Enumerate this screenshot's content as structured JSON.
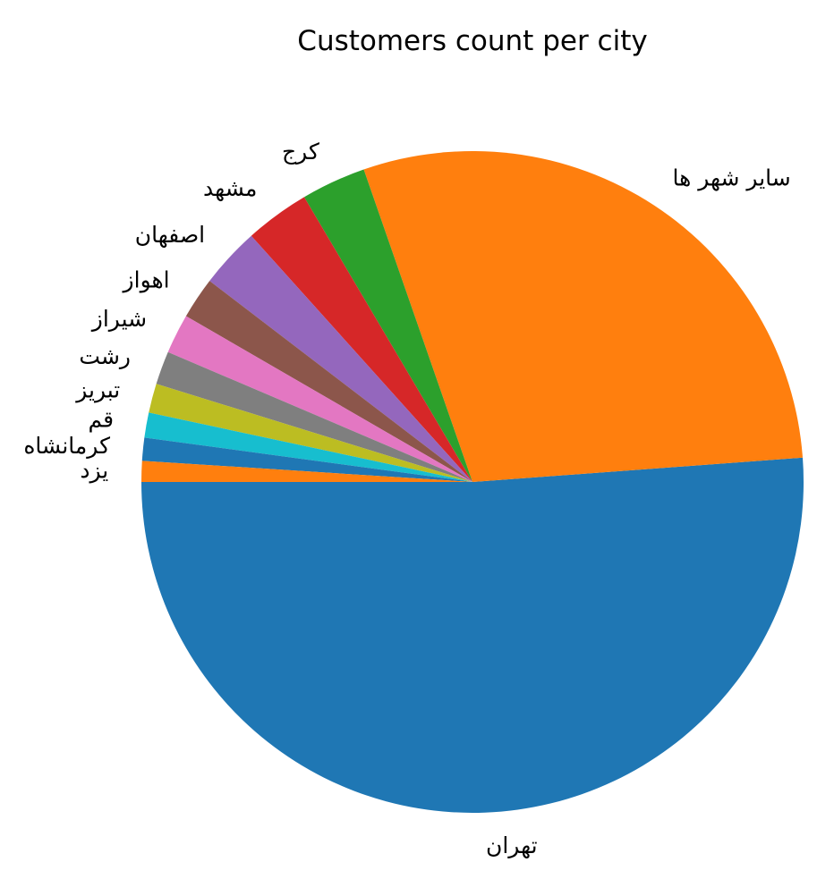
{
  "chart_data": {
    "type": "pie",
    "title": "Customers count per city",
    "start_angle_deg": 180,
    "direction": "counterclockwise",
    "slices": [
      {
        "label": "تهران",
        "value": 50.2,
        "color": "#1f77b4"
      },
      {
        "label": "سایر شهر ها",
        "value": 28.6,
        "color": "#ff7f0e"
      },
      {
        "label": "کرج",
        "value": 3.1,
        "color": "#2ca02c"
      },
      {
        "label": "مشهد",
        "value": 3.1,
        "color": "#d62728"
      },
      {
        "label": "اصفهان",
        "value": 2.9,
        "color": "#9467bd"
      },
      {
        "label": "اهواز",
        "value": 2.0,
        "color": "#8c564b"
      },
      {
        "label": "شیراز",
        "value": 1.9,
        "color": "#e377c2"
      },
      {
        "label": "رشت",
        "value": 1.6,
        "color": "#7f7f7f"
      },
      {
        "label": "تبریز",
        "value": 1.4,
        "color": "#bcbd22"
      },
      {
        "label": "قم",
        "value": 1.2,
        "color": "#17becf"
      },
      {
        "label": "کرمانشاه",
        "value": 1.1,
        "color": "#1f77b4"
      },
      {
        "label": "یزد",
        "value": 1.0,
        "color": "#ff7f0e"
      }
    ]
  }
}
